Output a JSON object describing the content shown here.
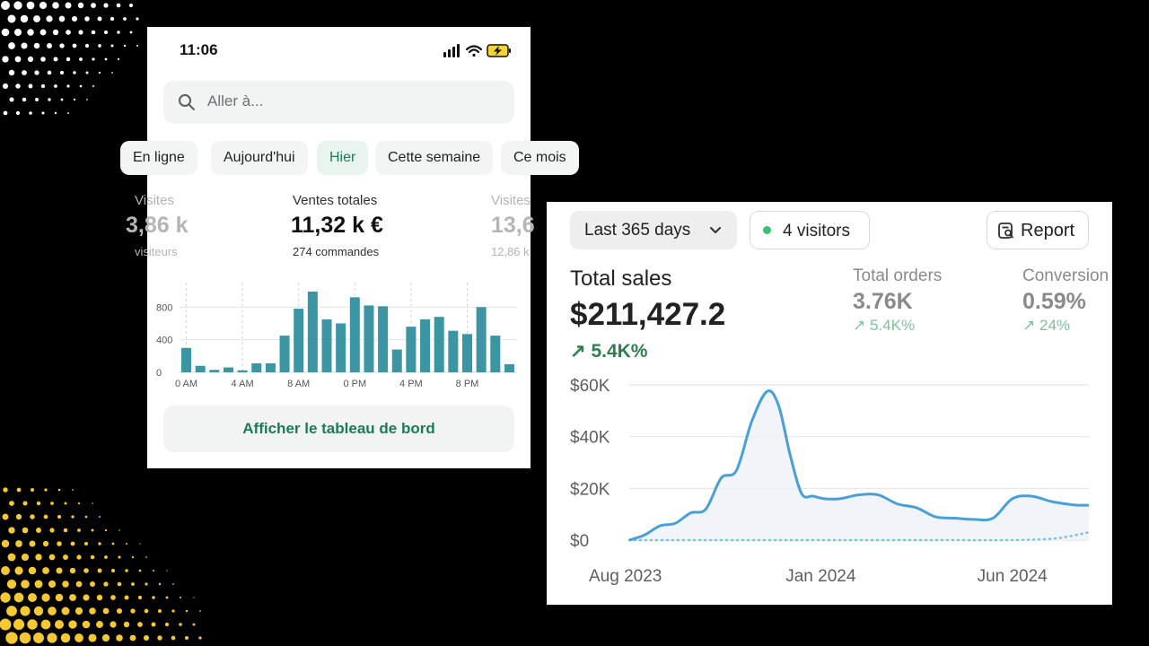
{
  "phone": {
    "time": "11:06",
    "search_placeholder": "Aller à...",
    "filters": [
      "En ligne",
      "Aujourd'hui",
      "Hier",
      "Cette semaine",
      "Ce mois"
    ],
    "active_filter": "Hier",
    "metric_left": {
      "label": "Visites",
      "value": "3,86 k",
      "sub": "visiteurs"
    },
    "metric_center": {
      "label": "Ventes totales",
      "value": "11,32 k €",
      "sub": "274 commandes"
    },
    "metric_right": {
      "label": "Visites",
      "value": "13,6",
      "sub": "12,86 k"
    },
    "dashboard_button": "Afficher le tableau de bord",
    "accent": "#1e7a55",
    "bar_color": "#3b95a3"
  },
  "sales": {
    "range_label": "Last 365 days",
    "visitors_label": "4 visitors",
    "report_label": "Report",
    "total_sales_label": "Total sales",
    "total_sales_value": "$211,427.2",
    "total_sales_change": "5.4K%",
    "total_orders_label": "Total orders",
    "total_orders_value": "3.76K",
    "total_orders_change": "5.4K%",
    "conversion_label": "Conversion",
    "conversion_value": "0.59%",
    "conversion_change": "24%",
    "positive_color": "#2e7d4f",
    "line_color": "#4b9fd6"
  },
  "chart_data": [
    {
      "type": "bar",
      "title": "",
      "categories": [
        "0 AM",
        "1 AM",
        "2 AM",
        "3 AM",
        "4 AM",
        "5 AM",
        "6 AM",
        "7 AM",
        "8 AM",
        "9 AM",
        "10 AM",
        "11 AM",
        "0 PM",
        "1 PM",
        "2 PM",
        "3 PM",
        "4 PM",
        "5 PM",
        "6 PM",
        "7 PM",
        "8 PM",
        "9 PM",
        "10 PM",
        "11 PM"
      ],
      "values": [
        300,
        80,
        30,
        60,
        25,
        110,
        110,
        450,
        780,
        990,
        650,
        600,
        920,
        820,
        810,
        280,
        560,
        650,
        680,
        510,
        470,
        800,
        450,
        100
      ],
      "x_ticks": [
        "0 AM",
        "4 AM",
        "8 AM",
        "0 PM",
        "4 PM",
        "8 PM"
      ],
      "y_ticks": [
        "0",
        "400",
        "800"
      ],
      "ylim": [
        0,
        1100
      ]
    },
    {
      "type": "line",
      "title": "",
      "x_ticks": [
        "Aug 2023",
        "Jan 2024",
        "Jun 2024"
      ],
      "y_ticks": [
        "$0",
        "$20K",
        "$40K",
        "$60K"
      ],
      "ylim": [
        0,
        60000
      ],
      "xlim": [
        0,
        12
      ],
      "series": [
        {
          "style": "solid",
          "x": [
            0,
            0.4,
            0.8,
            1.2,
            1.6,
            2.0,
            2.4,
            2.8,
            3.2,
            3.6,
            3.9,
            4.2,
            4.5,
            4.8,
            5.1,
            5.5,
            6.0,
            6.5,
            7.0,
            7.5,
            8.0,
            8.5,
            9.0,
            9.5,
            10.0,
            10.5,
            11.0,
            11.4,
            11.7,
            12.0
          ],
          "y": [
            0,
            2000,
            5500,
            6500,
            10500,
            12000,
            24000,
            27000,
            46000,
            57500,
            52000,
            33000,
            18000,
            17000,
            16000,
            16000,
            17500,
            17500,
            14000,
            12500,
            9000,
            8500,
            8000,
            8500,
            16000,
            17000,
            15000,
            14000,
            13500,
            13500
          ]
        },
        {
          "style": "dotted",
          "x": [
            0,
            2,
            4,
            6,
            8,
            10,
            11,
            11.5,
            12
          ],
          "y": [
            0,
            0,
            0,
            0,
            0,
            0,
            500,
            1500,
            3000
          ]
        }
      ]
    }
  ]
}
